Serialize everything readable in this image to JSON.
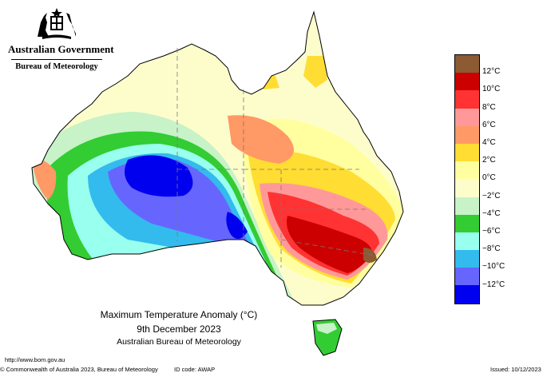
{
  "header": {
    "government": "Australian Government",
    "agency": "Bureau of Meteorology"
  },
  "map": {
    "title": "Maximum Temperature Anomaly (°C)",
    "date": "9th December 2023",
    "source": "Australian Bureau of Meteorology"
  },
  "legend": [
    {
      "label": "12°C",
      "color": "#8c5a33"
    },
    {
      "label": "10°C",
      "color": "#cc0000"
    },
    {
      "label": "8°C",
      "color": "#ff3333"
    },
    {
      "label": "6°C",
      "color": "#ff9999"
    },
    {
      "label": "4°C",
      "color": "#ff9966"
    },
    {
      "label": "2°C",
      "color": "#ffdd33"
    },
    {
      "label": "0°C",
      "color": "#ffffa0"
    },
    {
      "label": "−2°C",
      "color": "#fdfdcc"
    },
    {
      "label": "−4°C",
      "color": "#c8f2c8"
    },
    {
      "label": "−6°C",
      "color": "#33cc33"
    },
    {
      "label": "−8°C",
      "color": "#99ffee"
    },
    {
      "label": "−10°C",
      "color": "#33bbee"
    },
    {
      "label": "−12°C",
      "color": "#6666ff"
    },
    {
      "label": "",
      "color": "#0000ee"
    }
  ],
  "footer": {
    "url": "http://www.bom.gov.au",
    "copyright": "© Commonwealth of Australia 2023, Bureau of Meteorology",
    "id_code": "ID code: AWAP",
    "issued": "Issued: 10/12/2023"
  }
}
